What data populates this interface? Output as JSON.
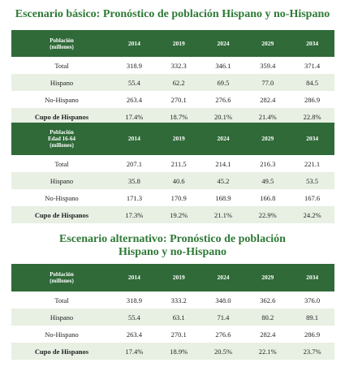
{
  "table1": {
    "title": "Escenario básico: Pronóstico de población Hispano y no-Hispano",
    "years": [
      "2014",
      "2019",
      "2024",
      "2029",
      "2034"
    ],
    "header1": [
      "Población",
      "(millones)"
    ],
    "rows": [
      {
        "label": "Total",
        "values": [
          "318.9",
          "332.3",
          "346.1",
          "359.4",
          "371.4"
        ]
      },
      {
        "label": "Hispano",
        "values": [
          "55.4",
          "62.2",
          "69.5",
          "77.0",
          "84.5"
        ]
      },
      {
        "label": "No-Hispano",
        "values": [
          "263.4",
          "270.1",
          "276.6",
          "282.4",
          "286.9"
        ]
      },
      {
        "label": "Cupo de Hispanos",
        "values": [
          "17.4%",
          "18.7%",
          "20.1%",
          "21.4%",
          "22.8%"
        ]
      }
    ],
    "header2": [
      "Población",
      "Edad 16-64",
      "(millones)"
    ],
    "rows2": [
      {
        "label": "Total",
        "values": [
          "207.1",
          "211.5",
          "214.1",
          "216.3",
          "221.1"
        ]
      },
      {
        "label": "Hispano",
        "values": [
          "35.8",
          "40.6",
          "45.2",
          "49.5",
          "53.5"
        ]
      },
      {
        "label": "No-Hispano",
        "values": [
          "171.3",
          "170.9",
          "168.9",
          "166.8",
          "167.6"
        ]
      },
      {
        "label": "Cupo de Hispanos",
        "values": [
          "17.3%",
          "19.2%",
          "21.1%",
          "22.9%",
          "24.2%"
        ]
      }
    ]
  },
  "table2": {
    "title_line1": "Escenario alternativo: Pronóstico de población",
    "title_line2": "Hispano y no-Hispano",
    "header": [
      "Población",
      "(millones)"
    ],
    "rows": [
      {
        "label": "Total",
        "values": [
          "318.9",
          "333.2",
          "348.0",
          "362.6",
          "376.0"
        ]
      },
      {
        "label": "Hispano",
        "values": [
          "55.4",
          "63.1",
          "71.4",
          "80.2",
          "89.1"
        ]
      },
      {
        "label": "No-Hispano",
        "values": [
          "263.4",
          "270.1",
          "276.6",
          "282.4",
          "286.9"
        ]
      },
      {
        "label": "Cupo de Hispanos",
        "values": [
          "17.4%",
          "18.9%",
          "20.5%",
          "22.1%",
          "23.7%"
        ]
      }
    ]
  }
}
